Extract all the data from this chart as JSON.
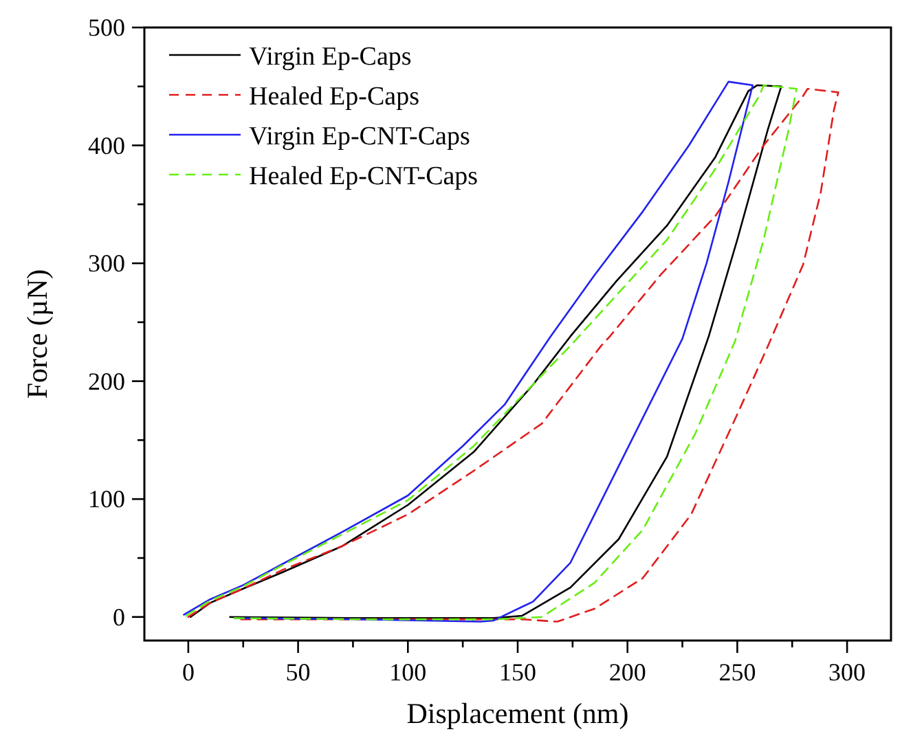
{
  "chart_data": {
    "type": "line",
    "xlabel": "Displacement (nm)",
    "ylabel": "Force (µN)",
    "xlim": [
      -20,
      320
    ],
    "ylim": [
      -20,
      500
    ],
    "xticks": [
      0,
      {
        "value": 25,
        "label": null
      },
      50,
      {
        "value": 75,
        "label": null
      },
      100,
      {
        "value": 125,
        "label": null
      },
      150,
      {
        "value": 175,
        "label": null
      },
      200,
      {
        "value": 225,
        "label": null
      },
      250,
      {
        "value": 275,
        "label": null
      },
      300
    ],
    "yticks": [
      0,
      {
        "value": 50,
        "label": null
      },
      100,
      {
        "value": 150,
        "label": null
      },
      200,
      {
        "value": 250,
        "label": null
      },
      300,
      {
        "value": 350,
        "label": null
      },
      400,
      {
        "value": 450,
        "label": null
      },
      500
    ],
    "legend": "top left",
    "grid": false,
    "marker": "none",
    "series": [
      {
        "name": "Virgin Ep-Caps",
        "color": "#000000",
        "line_style": "solid",
        "x": [
          1,
          10,
          25,
          43,
          70,
          100,
          130,
          157,
          174,
          195,
          218,
          240,
          255,
          259,
          270,
          264,
          250,
          237,
          218,
          196,
          174,
          152,
          139,
          80,
          19
        ],
        "values": [
          0,
          12,
          24,
          38,
          60,
          95,
          140,
          197,
          238,
          285,
          332,
          390,
          446,
          451,
          450,
          414,
          320,
          238,
          136,
          66,
          25,
          1,
          -1,
          -1,
          0
        ]
      },
      {
        "name": "Healed Ep-Caps",
        "color": "#e01e1e",
        "line_style": "dashed",
        "x": [
          0,
          10,
          25,
          43,
          70,
          100,
          130,
          161,
          188,
          192,
          215,
          240,
          262,
          280,
          282,
          296,
          294,
          288,
          280,
          264,
          251,
          229,
          207,
          185,
          168,
          152,
          80,
          24
        ],
        "values": [
          0,
          12,
          24,
          40,
          60,
          87,
          124,
          164,
          230,
          238,
          290,
          340,
          400,
          442,
          448,
          445,
          430,
          360,
          299,
          230,
          176,
          87,
          33,
          7,
          -4,
          -2,
          -2,
          -2
        ]
      },
      {
        "name": "Virgin Ep-CNT-Caps",
        "color": "#2222ee",
        "line_style": "solid",
        "x": [
          -2,
          10,
          25,
          43,
          70,
          100,
          125,
          144,
          165,
          185,
          207,
          228,
          246,
          257,
          246,
          236,
          225,
          196,
          174,
          157,
          139,
          133,
          80,
          21
        ],
        "values": [
          2,
          15,
          27,
          45,
          72,
          103,
          145,
          180,
          238,
          290,
          344,
          400,
          454,
          451,
          369,
          300,
          236,
          128,
          46,
          13,
          -3,
          -4,
          -2,
          -1
        ]
      },
      {
        "name": "Healed Ep-CNT-Caps",
        "color": "#66ee11",
        "line_style": "dashed",
        "x": [
          -1,
          10,
          25,
          43,
          70,
          100,
          130,
          161,
          174,
          196,
          218,
          240,
          260,
          262,
          277,
          273,
          262,
          249,
          231,
          207,
          185,
          161,
          141,
          80,
          21
        ],
        "values": [
          1,
          14,
          26,
          44,
          70,
          99,
          145,
          205,
          230,
          275,
          320,
          380,
          442,
          451,
          448,
          410,
          320,
          234,
          156,
          74,
          29,
          0,
          -2,
          -2,
          -1
        ]
      }
    ]
  }
}
